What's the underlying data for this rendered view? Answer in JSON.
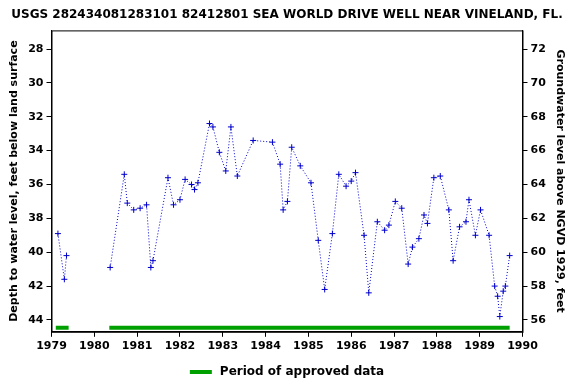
{
  "chart_data": {
    "type": "line",
    "title": "USGS 282434081283101 82412801 SEA WORLD DRIVE WELL NEAR VINELAND, FL.",
    "y_label": "Depth to water level, feet below land surface",
    "y2_label": "Groundwater level above NGVD 1929, feet",
    "xlim": [
      1979,
      1990
    ],
    "xticks": [
      1979,
      1980,
      1981,
      1982,
      1983,
      1984,
      1985,
      1986,
      1987,
      1988,
      1989,
      1990
    ],
    "ylim": [
      44.7,
      26.9
    ],
    "yticks": [
      28,
      30,
      32,
      34,
      36,
      38,
      40,
      42,
      44
    ],
    "y2lim": [
      55.3,
      73.1
    ],
    "y2ticks": [
      56,
      58,
      60,
      62,
      64,
      66,
      68,
      70,
      72
    ],
    "grid": false,
    "x": [
      1979.15,
      1979.3,
      1979.35,
      1979.9,
      1980.37,
      1980.7,
      1980.77,
      1980.92,
      1981.07,
      1981.22,
      1981.32,
      1981.37,
      1981.72,
      1981.85,
      1982.0,
      1982.12,
      1982.27,
      1982.34,
      1982.42,
      1982.69,
      1982.77,
      1982.92,
      1983.07,
      1983.19,
      1983.34,
      1983.71,
      1984.16,
      1984.34,
      1984.41,
      1984.51,
      1984.61,
      1984.81,
      1985.06,
      1985.23,
      1985.38,
      1985.56,
      1985.71,
      1985.88,
      1986.0,
      1986.1,
      1986.3,
      1986.41,
      1986.61,
      1986.78,
      1986.88,
      1987.03,
      1987.18,
      1987.33,
      1987.43,
      1987.58,
      1987.7,
      1987.78,
      1987.93,
      1988.08,
      1988.28,
      1988.38,
      1988.53,
      1988.68,
      1988.75,
      1988.9,
      1989.02,
      1989.22,
      1989.35,
      1989.42,
      1989.47,
      1989.55,
      1989.6,
      1989.7
    ],
    "series": [
      {
        "color": "#0000cc",
        "marker": "cross",
        "line_style": "dotted",
        "values": [
          38.9,
          41.6,
          40.2,
          null,
          40.9,
          35.4,
          37.1,
          37.5,
          37.4,
          37.2,
          40.9,
          40.5,
          35.6,
          37.2,
          36.9,
          35.7,
          36.0,
          36.3,
          35.9,
          32.4,
          32.6,
          34.1,
          35.2,
          32.6,
          35.5,
          33.4,
          33.5,
          34.8,
          37.5,
          37.0,
          33.8,
          34.9,
          35.9,
          39.3,
          42.2,
          38.9,
          35.4,
          36.1,
          35.8,
          35.3,
          39.0,
          42.4,
          38.2,
          38.7,
          38.4,
          37.0,
          37.4,
          40.7,
          39.7,
          39.2,
          37.8,
          38.3,
          35.6,
          35.5,
          37.5,
          40.5,
          38.5,
          38.2,
          36.9,
          39.0,
          37.5,
          39.0,
          42.0,
          42.6,
          43.8,
          42.3,
          42.0,
          40.2
        ]
      }
    ],
    "approved_periods": {
      "name": "Period of approved data",
      "color": "#00a000",
      "periods": [
        [
          1979.1,
          1979.4
        ],
        [
          1980.35,
          1989.7
        ]
      ]
    }
  }
}
